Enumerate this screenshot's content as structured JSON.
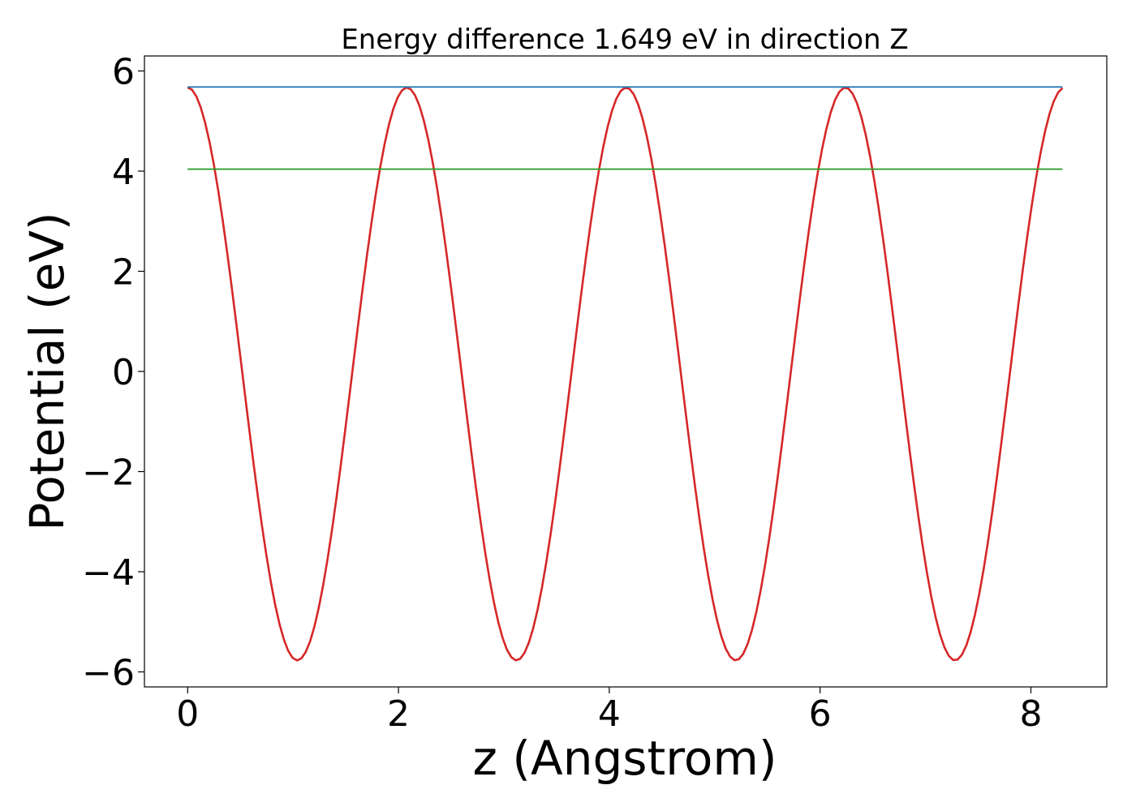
{
  "chart_data": {
    "type": "line",
    "title": "Energy difference 1.649 eV in direction Z",
    "xlabel": "z (Angstrom)",
    "ylabel": "Potential (eV)",
    "xlim": [
      -0.41,
      8.72
    ],
    "ylim": [
      -6.3,
      6.3
    ],
    "xticks": [
      0,
      2,
      4,
      6,
      8
    ],
    "xtick_labels": [
      "0",
      "2",
      "4",
      "6",
      "8"
    ],
    "yticks": [
      -6,
      -4,
      -2,
      0,
      2,
      4,
      6
    ],
    "ytick_labels": [
      "−6",
      "−4",
      "−2",
      "0",
      "2",
      "4",
      "6"
    ],
    "grid": false,
    "series": [
      {
        "color": "#d62728",
        "curve": "cosine",
        "x_range": [
          0,
          8.3
        ],
        "mean": -0.05,
        "amplitude": 5.72,
        "period": 2.08,
        "peaks_x": [
          0,
          2.08,
          4.16,
          6.24,
          8.3
        ],
        "troughs_x": [
          1.04,
          3.12,
          5.2,
          7.28
        ]
      },
      {
        "color": "#1f77b4",
        "curve": "constant",
        "x": [
          0,
          8.3
        ],
        "y": [
          5.68,
          5.68
        ]
      },
      {
        "color": "#2ca02c",
        "curve": "constant",
        "x": [
          0,
          8.3
        ],
        "y": [
          4.04,
          4.04
        ]
      }
    ]
  }
}
